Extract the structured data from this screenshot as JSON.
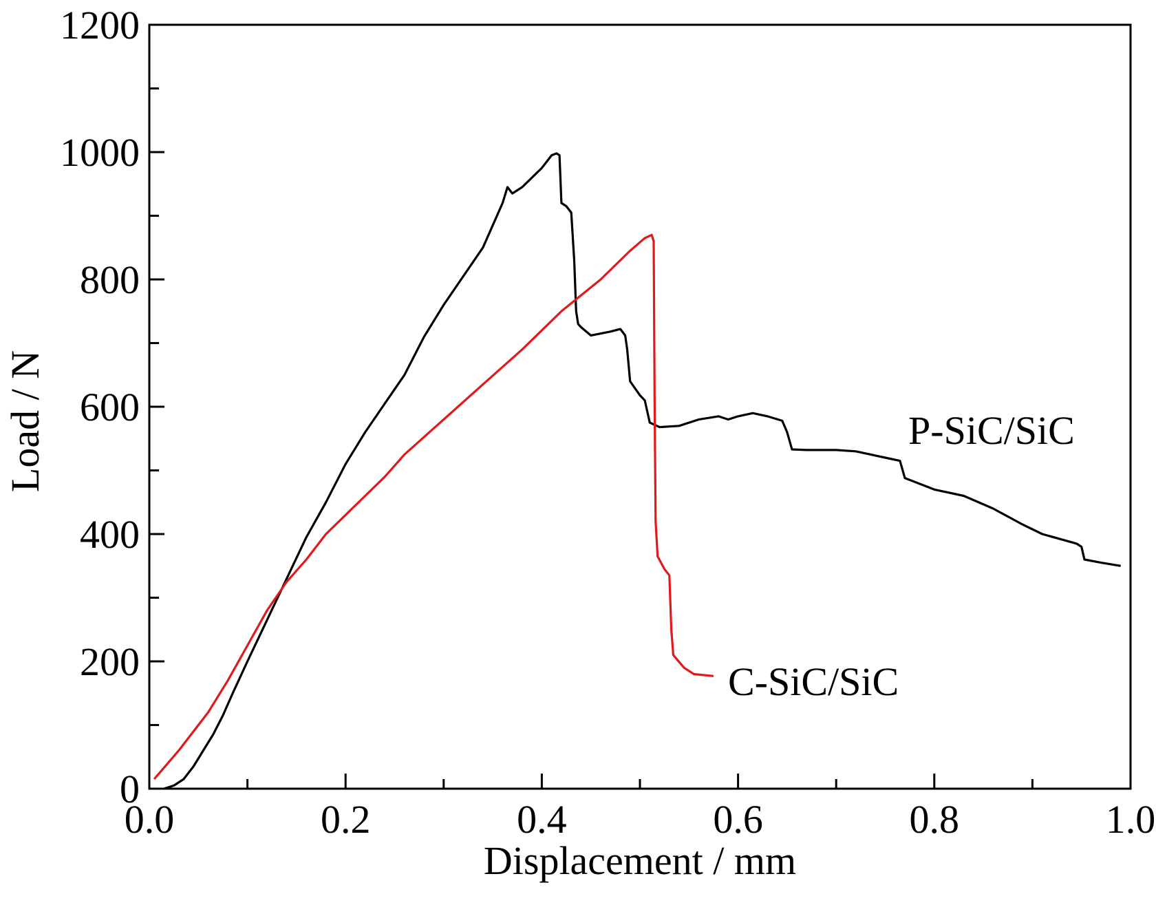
{
  "chart_data": {
    "type": "line",
    "title": "",
    "xlabel": "Displacement / mm",
    "ylabel": "Load / N",
    "xlim": [
      0.0,
      1.0
    ],
    "ylim": [
      0,
      1200
    ],
    "x_ticks": [
      "0.0",
      "0.2",
      "0.4",
      "0.6",
      "0.8",
      "1.0"
    ],
    "y_ticks": [
      "0",
      "200",
      "400",
      "600",
      "800",
      "1000",
      "1200"
    ],
    "grid": false,
    "legend": "none",
    "series": [
      {
        "name": "P-SiC/SiC",
        "color": "#000000",
        "points": [
          [
            0.015,
            0
          ],
          [
            0.025,
            5
          ],
          [
            0.035,
            15
          ],
          [
            0.045,
            35
          ],
          [
            0.055,
            60
          ],
          [
            0.065,
            85
          ],
          [
            0.075,
            115
          ],
          [
            0.085,
            150
          ],
          [
            0.1,
            200
          ],
          [
            0.12,
            265
          ],
          [
            0.14,
            330
          ],
          [
            0.16,
            395
          ],
          [
            0.18,
            450
          ],
          [
            0.2,
            510
          ],
          [
            0.22,
            560
          ],
          [
            0.24,
            605
          ],
          [
            0.26,
            650
          ],
          [
            0.28,
            710
          ],
          [
            0.3,
            760
          ],
          [
            0.32,
            805
          ],
          [
            0.34,
            850
          ],
          [
            0.36,
            920
          ],
          [
            0.365,
            945
          ],
          [
            0.37,
            935
          ],
          [
            0.38,
            945
          ],
          [
            0.4,
            975
          ],
          [
            0.41,
            995
          ],
          [
            0.415,
            998
          ],
          [
            0.418,
            995
          ],
          [
            0.42,
            920
          ],
          [
            0.425,
            915
          ],
          [
            0.43,
            905
          ],
          [
            0.433,
            830
          ],
          [
            0.435,
            750
          ],
          [
            0.437,
            730
          ],
          [
            0.44,
            725
          ],
          [
            0.45,
            712
          ],
          [
            0.47,
            718
          ],
          [
            0.48,
            722
          ],
          [
            0.485,
            712
          ],
          [
            0.487,
            690
          ],
          [
            0.49,
            640
          ],
          [
            0.5,
            618
          ],
          [
            0.505,
            610
          ],
          [
            0.51,
            575
          ],
          [
            0.52,
            568
          ],
          [
            0.54,
            570
          ],
          [
            0.56,
            580
          ],
          [
            0.58,
            585
          ],
          [
            0.59,
            580
          ],
          [
            0.6,
            585
          ],
          [
            0.615,
            590
          ],
          [
            0.63,
            585
          ],
          [
            0.645,
            578
          ],
          [
            0.65,
            560
          ],
          [
            0.655,
            533
          ],
          [
            0.67,
            532
          ],
          [
            0.7,
            532
          ],
          [
            0.72,
            530
          ],
          [
            0.75,
            520
          ],
          [
            0.765,
            515
          ],
          [
            0.77,
            488
          ],
          [
            0.8,
            470
          ],
          [
            0.83,
            460
          ],
          [
            0.86,
            440
          ],
          [
            0.89,
            415
          ],
          [
            0.91,
            400
          ],
          [
            0.945,
            385
          ],
          [
            0.95,
            380
          ],
          [
            0.953,
            360
          ],
          [
            0.97,
            355
          ],
          [
            0.99,
            350
          ]
        ]
      },
      {
        "name": "C-SiC/SiC",
        "color": "#e0191b",
        "points": [
          [
            0.005,
            15
          ],
          [
            0.03,
            60
          ],
          [
            0.06,
            120
          ],
          [
            0.08,
            170
          ],
          [
            0.1,
            225
          ],
          [
            0.12,
            280
          ],
          [
            0.14,
            325
          ],
          [
            0.16,
            360
          ],
          [
            0.18,
            400
          ],
          [
            0.2,
            430
          ],
          [
            0.22,
            460
          ],
          [
            0.24,
            490
          ],
          [
            0.26,
            525
          ],
          [
            0.3,
            580
          ],
          [
            0.34,
            635
          ],
          [
            0.38,
            690
          ],
          [
            0.42,
            750
          ],
          [
            0.46,
            800
          ],
          [
            0.49,
            845
          ],
          [
            0.505,
            865
          ],
          [
            0.512,
            870
          ],
          [
            0.514,
            860
          ],
          [
            0.515,
            600
          ],
          [
            0.516,
            420
          ],
          [
            0.518,
            365
          ],
          [
            0.525,
            345
          ],
          [
            0.53,
            335
          ],
          [
            0.532,
            250
          ],
          [
            0.534,
            210
          ],
          [
            0.545,
            190
          ],
          [
            0.555,
            180
          ],
          [
            0.575,
            177
          ]
        ]
      }
    ],
    "annotations": [
      "P-SiC/SiC",
      "C-SiC/SiC"
    ]
  }
}
